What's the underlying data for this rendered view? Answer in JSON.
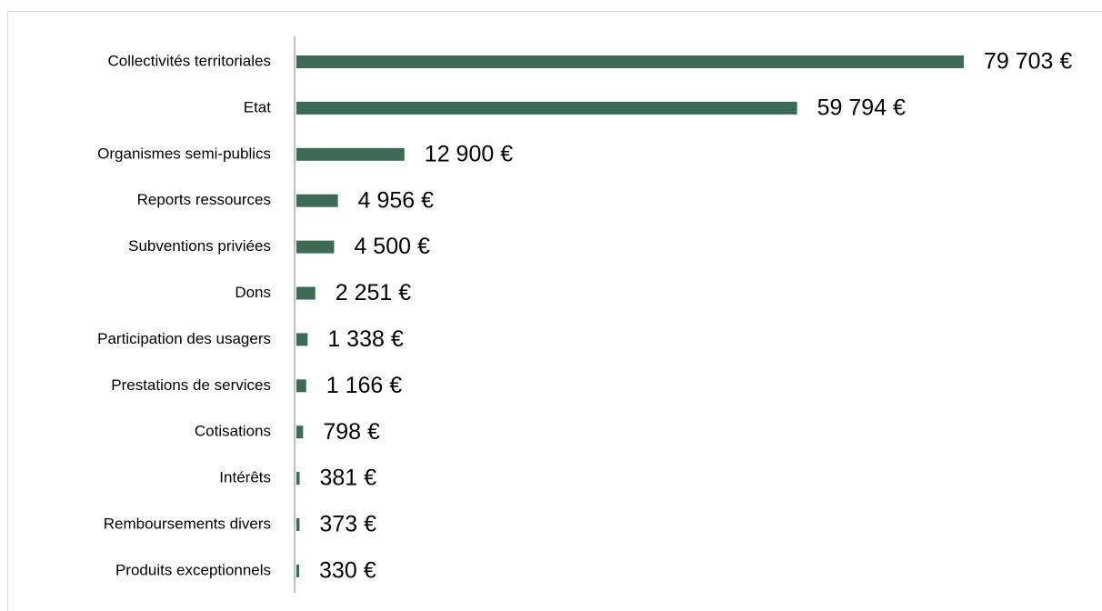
{
  "chart_data": {
    "type": "bar",
    "orientation": "horizontal",
    "categories": [
      "Collectivités territoriales",
      "Etat",
      "Organismes semi-publics",
      "Reports ressources",
      "Subventions priviées",
      "Dons",
      "Participation des usagers",
      "Prestations de services",
      "Cotisations",
      "Intérêts",
      "Remboursements divers",
      "Produits exceptionnels"
    ],
    "values": [
      79703,
      59794,
      12900,
      4956,
      4500,
      2251,
      1338,
      1166,
      798,
      381,
      373,
      330
    ],
    "value_labels": [
      "79 703 €",
      "59 794 €",
      "12 900 €",
      "4 956 €",
      "4 500 €",
      "2 251 €",
      "1 338 €",
      "1 166 €",
      "798 €",
      "381 €",
      "373 €",
      "330 €"
    ],
    "color": "#3d6a55"
  }
}
